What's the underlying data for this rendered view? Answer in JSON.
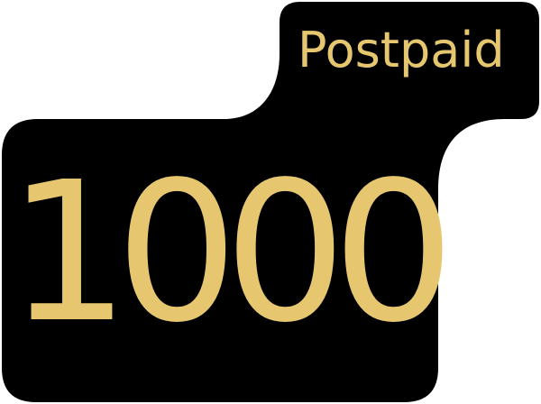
{
  "badge": {
    "plan_label": "Postpaid",
    "amount": "1000",
    "colors": {
      "background": "#000000",
      "text": "#e6c770",
      "page": "#ffffff"
    }
  }
}
